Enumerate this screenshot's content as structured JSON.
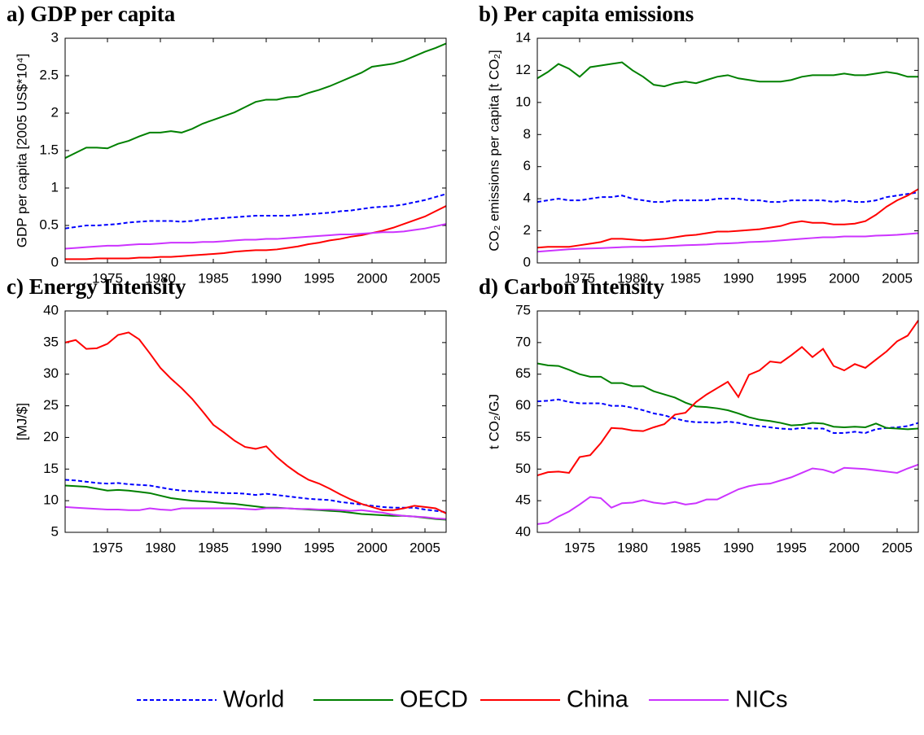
{
  "chart_data": [
    {
      "type": "line",
      "title": "a) GDP per capita",
      "y_label": "GDP per capita [2005 US$*10⁴]",
      "x": [
        1971,
        1972,
        1973,
        1974,
        1975,
        1976,
        1977,
        1978,
        1979,
        1980,
        1981,
        1982,
        1983,
        1984,
        1985,
        1986,
        1987,
        1988,
        1989,
        1990,
        1991,
        1992,
        1993,
        1994,
        1995,
        1996,
        1997,
        1998,
        1999,
        2000,
        2001,
        2002,
        2003,
        2004,
        2005,
        2006,
        2007
      ],
      "xlim": [
        1971,
        2007
      ],
      "xticks": [
        1975,
        1980,
        1985,
        1990,
        1995,
        2000,
        2005
      ],
      "ylim": [
        0,
        3
      ],
      "yticks": [
        0,
        0.5,
        1,
        1.5,
        2,
        2.5,
        3
      ],
      "legend": "bottom",
      "series": [
        {
          "name": "World",
          "color": "#0000ff",
          "dashed": true,
          "values": [
            0.46,
            0.48,
            0.5,
            0.5,
            0.51,
            0.52,
            0.54,
            0.55,
            0.56,
            0.56,
            0.56,
            0.55,
            0.56,
            0.58,
            0.59,
            0.6,
            0.61,
            0.62,
            0.63,
            0.63,
            0.63,
            0.63,
            0.64,
            0.65,
            0.66,
            0.67,
            0.69,
            0.7,
            0.72,
            0.74,
            0.75,
            0.76,
            0.78,
            0.81,
            0.84,
            0.88,
            0.92
          ]
        },
        {
          "name": "OECD",
          "color": "#008000",
          "dashed": false,
          "values": [
            1.4,
            1.47,
            1.54,
            1.54,
            1.53,
            1.59,
            1.63,
            1.69,
            1.74,
            1.74,
            1.76,
            1.74,
            1.79,
            1.86,
            1.91,
            1.96,
            2.01,
            2.08,
            2.15,
            2.18,
            2.18,
            2.21,
            2.22,
            2.27,
            2.31,
            2.36,
            2.42,
            2.48,
            2.54,
            2.62,
            2.64,
            2.66,
            2.7,
            2.76,
            2.82,
            2.87,
            2.93
          ]
        },
        {
          "name": "China",
          "color": "#ff0000",
          "dashed": false,
          "values": [
            0.05,
            0.05,
            0.05,
            0.06,
            0.06,
            0.06,
            0.06,
            0.07,
            0.07,
            0.08,
            0.08,
            0.09,
            0.1,
            0.11,
            0.12,
            0.13,
            0.15,
            0.16,
            0.17,
            0.17,
            0.18,
            0.2,
            0.22,
            0.25,
            0.27,
            0.3,
            0.32,
            0.35,
            0.37,
            0.4,
            0.43,
            0.47,
            0.52,
            0.57,
            0.62,
            0.69,
            0.76
          ]
        },
        {
          "name": "NICs",
          "color": "#cc33ff",
          "dashed": false,
          "values": [
            0.19,
            0.2,
            0.21,
            0.22,
            0.23,
            0.23,
            0.24,
            0.25,
            0.25,
            0.26,
            0.27,
            0.27,
            0.27,
            0.28,
            0.28,
            0.29,
            0.3,
            0.31,
            0.31,
            0.32,
            0.32,
            0.33,
            0.34,
            0.35,
            0.36,
            0.37,
            0.38,
            0.38,
            0.39,
            0.4,
            0.41,
            0.41,
            0.42,
            0.44,
            0.46,
            0.49,
            0.52
          ]
        }
      ]
    },
    {
      "type": "line",
      "title": "b) Per capita emissions",
      "y_label": "CO₂ emissions per capita [t CO₂]",
      "x": [
        1971,
        1972,
        1973,
        1974,
        1975,
        1976,
        1977,
        1978,
        1979,
        1980,
        1981,
        1982,
        1983,
        1984,
        1985,
        1986,
        1987,
        1988,
        1989,
        1990,
        1991,
        1992,
        1993,
        1994,
        1995,
        1996,
        1997,
        1998,
        1999,
        2000,
        2001,
        2002,
        2003,
        2004,
        2005,
        2006,
        2007
      ],
      "xlim": [
        1971,
        2007
      ],
      "xticks": [
        1975,
        1980,
        1985,
        1990,
        1995,
        2000,
        2005
      ],
      "ylim": [
        0,
        14
      ],
      "yticks": [
        0,
        2,
        4,
        6,
        8,
        10,
        12,
        14
      ],
      "series": [
        {
          "color": "#0000ff",
          "dashed": true,
          "values": [
            3.8,
            3.9,
            4.0,
            3.9,
            3.9,
            4.0,
            4.1,
            4.1,
            4.2,
            4.0,
            3.9,
            3.8,
            3.8,
            3.9,
            3.9,
            3.9,
            3.9,
            4.0,
            4.0,
            4.0,
            3.9,
            3.9,
            3.8,
            3.8,
            3.9,
            3.9,
            3.9,
            3.9,
            3.8,
            3.9,
            3.8,
            3.8,
            3.9,
            4.1,
            4.2,
            4.3,
            4.4
          ]
        },
        {
          "color": "#008000",
          "dashed": false,
          "values": [
            11.5,
            11.9,
            12.4,
            12.1,
            11.6,
            12.2,
            12.3,
            12.4,
            12.5,
            12.0,
            11.6,
            11.1,
            11.0,
            11.2,
            11.3,
            11.2,
            11.4,
            11.6,
            11.7,
            11.5,
            11.4,
            11.3,
            11.3,
            11.3,
            11.4,
            11.6,
            11.7,
            11.7,
            11.7,
            11.8,
            11.7,
            11.7,
            11.8,
            11.9,
            11.8,
            11.6,
            11.6
          ]
        },
        {
          "color": "#ff0000",
          "dashed": false,
          "values": [
            0.95,
            1.0,
            1.0,
            1.0,
            1.1,
            1.2,
            1.3,
            1.5,
            1.5,
            1.45,
            1.4,
            1.45,
            1.5,
            1.6,
            1.7,
            1.75,
            1.85,
            1.95,
            1.95,
            2.0,
            2.05,
            2.1,
            2.2,
            2.3,
            2.5,
            2.6,
            2.5,
            2.5,
            2.4,
            2.4,
            2.45,
            2.6,
            3.0,
            3.5,
            3.9,
            4.2,
            4.6
          ]
        },
        {
          "color": "#cc33ff",
          "dashed": false,
          "values": [
            0.7,
            0.75,
            0.8,
            0.85,
            0.88,
            0.9,
            0.92,
            0.95,
            0.98,
            1.0,
            1.0,
            1.02,
            1.05,
            1.07,
            1.1,
            1.12,
            1.15,
            1.2,
            1.22,
            1.25,
            1.3,
            1.32,
            1.35,
            1.4,
            1.45,
            1.5,
            1.55,
            1.6,
            1.6,
            1.65,
            1.65,
            1.65,
            1.7,
            1.72,
            1.75,
            1.8,
            1.85
          ]
        }
      ]
    },
    {
      "type": "line",
      "title": "c) Energy Intensity",
      "y_label": "[MJ/$]",
      "x": [
        1971,
        1972,
        1973,
        1974,
        1975,
        1976,
        1977,
        1978,
        1979,
        1980,
        1981,
        1982,
        1983,
        1984,
        1985,
        1986,
        1987,
        1988,
        1989,
        1990,
        1991,
        1992,
        1993,
        1994,
        1995,
        1996,
        1997,
        1998,
        1999,
        2000,
        2001,
        2002,
        2003,
        2004,
        2005,
        2006,
        2007
      ],
      "xlim": [
        1971,
        2007
      ],
      "xticks": [
        1975,
        1980,
        1985,
        1990,
        1995,
        2000,
        2005
      ],
      "ylim": [
        5,
        40
      ],
      "yticks": [
        5,
        10,
        15,
        20,
        25,
        30,
        35,
        40
      ],
      "series": [
        {
          "color": "#0000ff",
          "dashed": true,
          "values": [
            13.3,
            13.2,
            13.0,
            12.8,
            12.7,
            12.8,
            12.6,
            12.5,
            12.4,
            12.1,
            11.8,
            11.6,
            11.5,
            11.4,
            11.3,
            11.2,
            11.2,
            11.1,
            10.9,
            11.1,
            10.9,
            10.7,
            10.5,
            10.3,
            10.2,
            10.1,
            9.8,
            9.6,
            9.4,
            9.2,
            9.0,
            8.9,
            8.9,
            8.9,
            8.6,
            8.4,
            8.2
          ]
        },
        {
          "color": "#008000",
          "dashed": false,
          "values": [
            12.4,
            12.3,
            12.2,
            11.9,
            11.6,
            11.7,
            11.6,
            11.4,
            11.2,
            10.8,
            10.4,
            10.2,
            10.0,
            9.9,
            9.8,
            9.6,
            9.5,
            9.3,
            9.1,
            8.9,
            8.9,
            8.8,
            8.7,
            8.6,
            8.5,
            8.4,
            8.3,
            8.1,
            7.9,
            7.8,
            7.7,
            7.6,
            7.6,
            7.5,
            7.3,
            7.1,
            7.0
          ]
        },
        {
          "color": "#ff0000",
          "dashed": false,
          "values": [
            35.0,
            35.4,
            34.0,
            34.1,
            34.8,
            36.2,
            36.6,
            35.5,
            33.3,
            31.0,
            29.3,
            27.8,
            26.1,
            24.1,
            22.0,
            20.8,
            19.5,
            18.5,
            18.2,
            18.6,
            16.9,
            15.5,
            14.3,
            13.3,
            12.7,
            11.9,
            11.0,
            10.2,
            9.5,
            9.0,
            8.5,
            8.5,
            8.8,
            9.2,
            9.0,
            8.8,
            8.0
          ]
        },
        {
          "color": "#cc33ff",
          "dashed": false,
          "values": [
            9.0,
            8.9,
            8.8,
            8.7,
            8.6,
            8.6,
            8.5,
            8.5,
            8.8,
            8.6,
            8.5,
            8.8,
            8.8,
            8.8,
            8.8,
            8.8,
            8.8,
            8.7,
            8.6,
            8.8,
            8.8,
            8.8,
            8.7,
            8.7,
            8.6,
            8.6,
            8.5,
            8.4,
            8.5,
            8.3,
            8.1,
            7.8,
            7.6,
            7.5,
            7.4,
            7.2,
            7.1
          ]
        }
      ]
    },
    {
      "type": "line",
      "title": "d) Carbon Intensity",
      "y_label": "t CO₂/GJ",
      "x": [
        1971,
        1972,
        1973,
        1974,
        1975,
        1976,
        1977,
        1978,
        1979,
        1980,
        1981,
        1982,
        1983,
        1984,
        1985,
        1986,
        1987,
        1988,
        1989,
        1990,
        1991,
        1992,
        1993,
        1994,
        1995,
        1996,
        1997,
        1998,
        1999,
        2000,
        2001,
        2002,
        2003,
        2004,
        2005,
        2006,
        2007
      ],
      "xlim": [
        1971,
        2007
      ],
      "xticks": [
        1975,
        1980,
        1985,
        1990,
        1995,
        2000,
        2005
      ],
      "ylim": [
        40,
        75
      ],
      "yticks": [
        40,
        45,
        50,
        55,
        60,
        65,
        70,
        75
      ],
      "series": [
        {
          "color": "#0000ff",
          "dashed": true,
          "values": [
            60.7,
            60.8,
            61.0,
            60.6,
            60.4,
            60.4,
            60.4,
            60.0,
            60.0,
            59.7,
            59.3,
            58.8,
            58.5,
            58.0,
            57.6,
            57.4,
            57.4,
            57.3,
            57.5,
            57.3,
            57.0,
            56.8,
            56.6,
            56.4,
            56.3,
            56.5,
            56.4,
            56.4,
            55.7,
            55.7,
            55.9,
            55.7,
            56.3,
            56.5,
            56.6,
            56.8,
            57.3
          ]
        },
        {
          "color": "#008000",
          "dashed": false,
          "values": [
            66.7,
            66.4,
            66.3,
            65.7,
            65.0,
            64.6,
            64.6,
            63.6,
            63.6,
            63.1,
            63.1,
            62.3,
            61.8,
            61.3,
            60.5,
            59.9,
            59.8,
            59.6,
            59.3,
            58.8,
            58.2,
            57.8,
            57.6,
            57.3,
            56.9,
            57.0,
            57.3,
            57.2,
            56.7,
            56.6,
            56.7,
            56.6,
            57.2,
            56.5,
            56.4,
            56.3,
            56.4
          ]
        },
        {
          "color": "#ff0000",
          "dashed": false,
          "values": [
            49.0,
            49.5,
            49.6,
            49.4,
            51.9,
            52.2,
            54.1,
            56.5,
            56.4,
            56.1,
            56.0,
            56.6,
            57.1,
            58.6,
            58.9,
            60.6,
            61.8,
            62.8,
            63.8,
            61.4,
            64.9,
            65.6,
            67.0,
            66.8,
            68.0,
            69.3,
            67.7,
            69.0,
            66.3,
            65.6,
            66.6,
            66.0,
            67.3,
            68.6,
            70.2,
            71.1,
            73.5
          ]
        },
        {
          "color": "#cc33ff",
          "dashed": false,
          "values": [
            41.3,
            41.5,
            42.5,
            43.3,
            44.4,
            45.6,
            45.4,
            43.9,
            44.6,
            44.7,
            45.1,
            44.7,
            44.5,
            44.8,
            44.4,
            44.6,
            45.2,
            45.2,
            46.0,
            46.8,
            47.3,
            47.6,
            47.7,
            48.2,
            48.7,
            49.4,
            50.1,
            49.9,
            49.4,
            50.2,
            50.1,
            50.0,
            49.8,
            49.6,
            49.4,
            50.1,
            50.7
          ]
        }
      ]
    }
  ]
}
